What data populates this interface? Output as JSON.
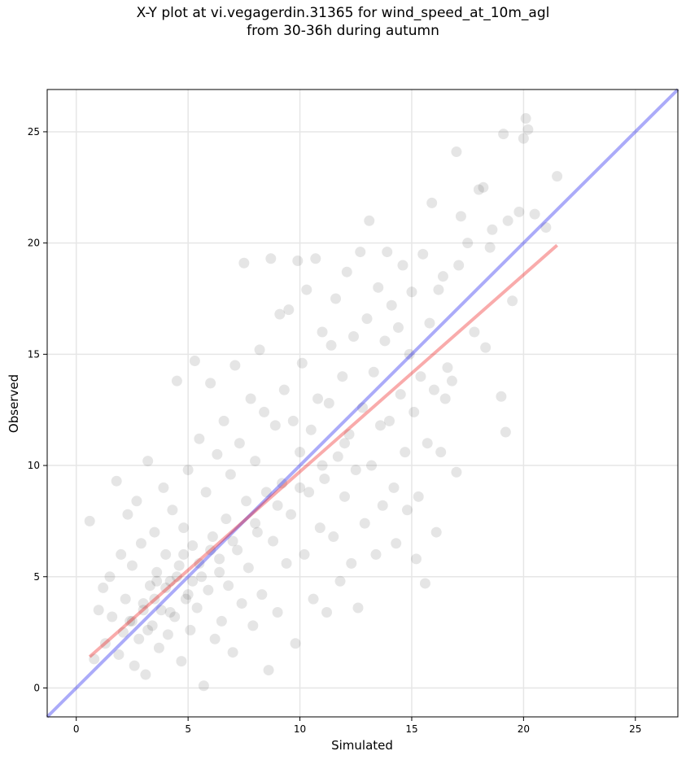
{
  "chart_data": {
    "type": "scatter",
    "title_lines": [
      "X-Y plot at vi.vegagerdin.31365 for wind_speed_at_10m_agl",
      "from 30-36h during autumn"
    ],
    "xlabel": "Simulated",
    "ylabel": "Observed",
    "xlim": [
      -1.3,
      26.9
    ],
    "ylim": [
      -1.3,
      26.9
    ],
    "xticks": [
      0,
      5,
      10,
      15,
      20,
      25
    ],
    "yticks": [
      0,
      5,
      10,
      15,
      20,
      25
    ],
    "grid": true,
    "point_color": "#000000",
    "point_alpha": 0.1,
    "identity_line": {
      "color": "#0000ee",
      "alpha": 0.33,
      "from": [
        -1.3,
        -1.3
      ],
      "to": [
        26.9,
        26.9
      ]
    },
    "fit_line": {
      "color": "#ee0000",
      "alpha": 0.33,
      "from": [
        0.6,
        1.4
      ],
      "to": [
        21.5,
        19.9
      ]
    },
    "points": [
      [
        0.6,
        7.5
      ],
      [
        0.8,
        1.3
      ],
      [
        1.0,
        3.5
      ],
      [
        1.2,
        4.5
      ],
      [
        1.3,
        2.0
      ],
      [
        1.5,
        5.0
      ],
      [
        1.6,
        3.2
      ],
      [
        1.8,
        9.3
      ],
      [
        1.9,
        1.5
      ],
      [
        2.0,
        6.0
      ],
      [
        2.1,
        2.5
      ],
      [
        2.2,
        4.0
      ],
      [
        2.3,
        7.8
      ],
      [
        2.4,
        3.0
      ],
      [
        2.5,
        5.5
      ],
      [
        2.6,
        1.0
      ],
      [
        2.7,
        8.4
      ],
      [
        2.8,
        2.2
      ],
      [
        2.9,
        6.5
      ],
      [
        3.0,
        3.8
      ],
      [
        3.1,
        0.6
      ],
      [
        3.2,
        10.2
      ],
      [
        3.3,
        4.6
      ],
      [
        3.4,
        2.8
      ],
      [
        3.5,
        7.0
      ],
      [
        3.6,
        5.2
      ],
      [
        3.7,
        1.8
      ],
      [
        3.8,
        3.5
      ],
      [
        3.9,
        9.0
      ],
      [
        4.0,
        6.0
      ],
      [
        4.1,
        2.4
      ],
      [
        4.2,
        4.8
      ],
      [
        4.3,
        8.0
      ],
      [
        4.4,
        3.2
      ],
      [
        4.5,
        13.8
      ],
      [
        4.6,
        5.5
      ],
      [
        4.7,
        1.2
      ],
      [
        4.8,
        7.2
      ],
      [
        4.9,
        4.0
      ],
      [
        5.0,
        9.8
      ],
      [
        5.1,
        2.6
      ],
      [
        5.2,
        6.4
      ],
      [
        5.3,
        14.7
      ],
      [
        5.4,
        3.6
      ],
      [
        5.5,
        11.2
      ],
      [
        5.6,
        5.0
      ],
      [
        5.7,
        0.1
      ],
      [
        5.8,
        8.8
      ],
      [
        5.9,
        4.4
      ],
      [
        6.0,
        13.7
      ],
      [
        6.1,
        6.8
      ],
      [
        6.2,
        2.2
      ],
      [
        6.3,
        10.5
      ],
      [
        6.4,
        5.8
      ],
      [
        6.5,
        3.0
      ],
      [
        6.6,
        12.0
      ],
      [
        6.7,
        7.6
      ],
      [
        6.8,
        4.6
      ],
      [
        6.9,
        9.6
      ],
      [
        7.0,
        1.6
      ],
      [
        7.1,
        14.5
      ],
      [
        7.2,
        6.2
      ],
      [
        7.3,
        11.0
      ],
      [
        7.4,
        3.8
      ],
      [
        7.5,
        19.1
      ],
      [
        7.6,
        8.4
      ],
      [
        7.7,
        5.4
      ],
      [
        7.8,
        13.0
      ],
      [
        7.9,
        2.8
      ],
      [
        8.0,
        10.2
      ],
      [
        8.1,
        7.0
      ],
      [
        8.2,
        15.2
      ],
      [
        8.3,
        4.2
      ],
      [
        8.4,
        12.4
      ],
      [
        8.5,
        8.8
      ],
      [
        8.6,
        0.8
      ],
      [
        8.7,
        19.3
      ],
      [
        8.8,
        6.6
      ],
      [
        8.9,
        11.8
      ],
      [
        9.0,
        3.4
      ],
      [
        9.1,
        16.8
      ],
      [
        9.2,
        9.2
      ],
      [
        9.3,
        13.4
      ],
      [
        9.4,
        5.6
      ],
      [
        9.5,
        17.0
      ],
      [
        9.6,
        7.8
      ],
      [
        9.7,
        12.0
      ],
      [
        9.8,
        2.0
      ],
      [
        9.9,
        19.2
      ],
      [
        10.0,
        10.6
      ],
      [
        10.1,
        14.6
      ],
      [
        10.2,
        6.0
      ],
      [
        10.3,
        17.9
      ],
      [
        10.4,
        8.8
      ],
      [
        10.5,
        11.6
      ],
      [
        10.6,
        4.0
      ],
      [
        10.7,
        19.3
      ],
      [
        10.8,
        13.0
      ],
      [
        10.9,
        7.2
      ],
      [
        11.0,
        16.0
      ],
      [
        11.1,
        9.4
      ],
      [
        11.2,
        3.4
      ],
      [
        11.3,
        12.8
      ],
      [
        11.4,
        15.4
      ],
      [
        11.5,
        6.8
      ],
      [
        11.6,
        17.5
      ],
      [
        11.7,
        10.4
      ],
      [
        11.8,
        4.8
      ],
      [
        11.9,
        14.0
      ],
      [
        12.0,
        8.6
      ],
      [
        12.1,
        18.7
      ],
      [
        12.2,
        11.4
      ],
      [
        12.3,
        5.6
      ],
      [
        12.4,
        15.8
      ],
      [
        12.5,
        9.8
      ],
      [
        12.6,
        3.6
      ],
      [
        12.7,
        19.6
      ],
      [
        12.8,
        12.6
      ],
      [
        12.9,
        7.4
      ],
      [
        13.0,
        16.6
      ],
      [
        13.1,
        21.0
      ],
      [
        13.2,
        10.0
      ],
      [
        13.3,
        14.2
      ],
      [
        13.4,
        6.0
      ],
      [
        13.5,
        18.0
      ],
      [
        13.6,
        11.8
      ],
      [
        13.7,
        8.2
      ],
      [
        13.8,
        15.6
      ],
      [
        13.9,
        19.6
      ],
      [
        14.0,
        12.0
      ],
      [
        14.1,
        17.2
      ],
      [
        14.2,
        9.0
      ],
      [
        14.3,
        6.5
      ],
      [
        14.4,
        16.2
      ],
      [
        14.5,
        13.2
      ],
      [
        14.6,
        19.0
      ],
      [
        14.7,
        10.6
      ],
      [
        14.8,
        8.0
      ],
      [
        14.9,
        15.0
      ],
      [
        15.0,
        17.8
      ],
      [
        15.1,
        12.4
      ],
      [
        15.2,
        5.8
      ],
      [
        15.3,
        8.6
      ],
      [
        15.4,
        14.0
      ],
      [
        15.5,
        19.5
      ],
      [
        15.6,
        4.7
      ],
      [
        15.7,
        11.0
      ],
      [
        15.8,
        16.4
      ],
      [
        15.9,
        21.8
      ],
      [
        16.0,
        13.4
      ],
      [
        16.1,
        7.0
      ],
      [
        16.2,
        17.9
      ],
      [
        16.3,
        10.6
      ],
      [
        16.4,
        18.5
      ],
      [
        16.5,
        13.0
      ],
      [
        16.6,
        14.4
      ],
      [
        17.0,
        24.1
      ],
      [
        17.1,
        19.0
      ],
      [
        17.2,
        21.2
      ],
      [
        17.5,
        20.0
      ],
      [
        17.8,
        16.0
      ],
      [
        18.0,
        22.4
      ],
      [
        18.2,
        22.5
      ],
      [
        18.5,
        19.8
      ],
      [
        18.6,
        20.6
      ],
      [
        19.0,
        13.1
      ],
      [
        19.1,
        24.9
      ],
      [
        19.2,
        11.5
      ],
      [
        19.3,
        21.0
      ],
      [
        19.5,
        17.4
      ],
      [
        19.8,
        21.4
      ],
      [
        20.0,
        24.7
      ],
      [
        20.1,
        25.6
      ],
      [
        20.2,
        25.1
      ],
      [
        20.5,
        21.3
      ],
      [
        21.0,
        20.7
      ],
      [
        21.5,
        23.0
      ],
      [
        17.0,
        9.7
      ],
      [
        18.3,
        15.3
      ],
      [
        16.8,
        13.8
      ],
      [
        3.0,
        3.5
      ],
      [
        3.5,
        4.0
      ],
      [
        4.0,
        4.5
      ],
      [
        4.5,
        5.0
      ],
      [
        5.0,
        4.2
      ],
      [
        5.5,
        5.6
      ],
      [
        6.0,
        6.2
      ],
      [
        2.5,
        3.0
      ],
      [
        3.2,
        2.6
      ],
      [
        4.2,
        3.4
      ],
      [
        5.2,
        4.8
      ],
      [
        6.4,
        5.2
      ],
      [
        7.0,
        6.6
      ],
      [
        8.0,
        7.4
      ],
      [
        9.0,
        8.2
      ],
      [
        10.0,
        9.0
      ],
      [
        11.0,
        10.0
      ],
      [
        12.0,
        11.0
      ],
      [
        4.8,
        6.0
      ],
      [
        3.6,
        4.8
      ]
    ]
  }
}
